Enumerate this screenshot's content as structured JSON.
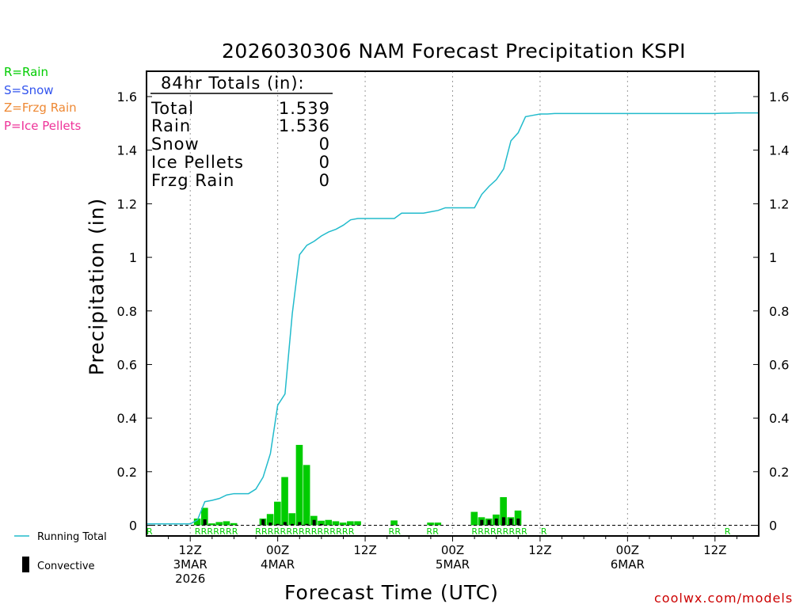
{
  "chart_data": {
    "type": "bar",
    "title": "2026030306 NAM Forecast Precipitation KSPI",
    "ylabel": "Precipitation (in)",
    "xlabel": "Forecast Time (UTC)",
    "ylim": [
      0,
      1.7
    ],
    "yticks": [
      "0",
      "0.2",
      "0.4",
      "0.6",
      "0.8",
      "1",
      "1.2",
      "1.4",
      "1.6"
    ],
    "ytick_values": [
      0,
      0.2,
      0.4,
      0.6,
      0.8,
      1,
      1.2,
      1.4,
      1.6
    ],
    "xlim_hours": [
      0,
      84
    ],
    "xticks": [
      {
        "hour": 6,
        "lines": [
          "12Z",
          "3MAR",
          "2026"
        ]
      },
      {
        "hour": 18,
        "lines": [
          "00Z",
          "4MAR"
        ]
      },
      {
        "hour": 30,
        "lines": [
          "12Z"
        ]
      },
      {
        "hour": 42,
        "lines": [
          "00Z",
          "5MAR"
        ]
      },
      {
        "hour": 54,
        "lines": [
          "12Z"
        ]
      },
      {
        "hour": 66,
        "lines": [
          "00Z",
          "6MAR"
        ]
      },
      {
        "hour": 78,
        "lines": [
          "12Z"
        ]
      }
    ],
    "running_total": {
      "name": "Running Total",
      "color": "#22bbcc",
      "hours": [
        0,
        1,
        2,
        3,
        4,
        5,
        6,
        7,
        8,
        9,
        10,
        11,
        12,
        13,
        14,
        15,
        16,
        17,
        18,
        19,
        20,
        21,
        22,
        23,
        24,
        25,
        26,
        27,
        28,
        29,
        30,
        31,
        32,
        33,
        34,
        35,
        36,
        37,
        38,
        39,
        40,
        41,
        42,
        43,
        44,
        45,
        46,
        47,
        48,
        49,
        50,
        51,
        52,
        53,
        54,
        55,
        56,
        57,
        58,
        59,
        60,
        61,
        62,
        63,
        64,
        65,
        66,
        67,
        68,
        69,
        70,
        71,
        72,
        73,
        74,
        75,
        76,
        77,
        78,
        79,
        80,
        81,
        82,
        83,
        84
      ],
      "values": [
        0.005,
        0.005,
        0.005,
        0.005,
        0.005,
        0.005,
        0.005,
        0.02,
        0.088,
        0.093,
        0.1,
        0.113,
        0.118,
        0.118,
        0.118,
        0.135,
        0.18,
        0.268,
        0.448,
        0.49,
        0.79,
        1.01,
        1.045,
        1.06,
        1.08,
        1.095,
        1.105,
        1.12,
        1.14,
        1.145,
        1.145,
        1.145,
        1.145,
        1.145,
        1.145,
        1.165,
        1.165,
        1.165,
        1.165,
        1.17,
        1.175,
        1.185,
        1.185,
        1.185,
        1.185,
        1.185,
        1.235,
        1.265,
        1.29,
        1.33,
        1.435,
        1.465,
        1.525,
        1.53,
        1.535,
        1.535,
        1.537,
        1.537,
        1.537,
        1.537,
        1.537,
        1.537,
        1.537,
        1.537,
        1.537,
        1.537,
        1.537,
        1.537,
        1.537,
        1.537,
        1.537,
        1.537,
        1.537,
        1.537,
        1.537,
        1.537,
        1.537,
        1.537,
        1.537,
        1.538,
        1.538,
        1.539,
        1.539,
        1.539,
        1.539
      ]
    },
    "precip_bars": {
      "name": "Rain",
      "color": "#00cc00",
      "hours": [
        7,
        8,
        9,
        10,
        11,
        12,
        16,
        17,
        18,
        19,
        20,
        21,
        22,
        23,
        24,
        25,
        26,
        27,
        28,
        29,
        34,
        39,
        40,
        45,
        46,
        47,
        48,
        49,
        50,
        51
      ],
      "values": [
        0.025,
        0.065,
        0.007,
        0.012,
        0.015,
        0.008,
        0.025,
        0.042,
        0.088,
        0.18,
        0.045,
        0.3,
        0.225,
        0.035,
        0.017,
        0.02,
        0.015,
        0.01,
        0.015,
        0.015,
        0.018,
        0.01,
        0.01,
        0.05,
        0.03,
        0.025,
        0.04,
        0.105,
        0.03,
        0.055
      ]
    },
    "convective": {
      "name": "Convective",
      "color": "#000000",
      "hours": [
        8,
        16,
        17,
        18,
        19,
        20,
        21,
        22,
        23,
        24,
        46,
        47,
        48,
        49,
        50,
        51
      ],
      "values": [
        0.022,
        0.022,
        0.01,
        0.005,
        0.012,
        0.005,
        0.012,
        0.005,
        0.02,
        0.005,
        0.02,
        0.02,
        0.025,
        0.03,
        0.025,
        0.025
      ]
    },
    "ptype_markers": [
      {
        "hour": 0,
        "type": "R"
      },
      {
        "hour": 6.6,
        "text": "RRRRRRR"
      },
      {
        "hour": 14.9,
        "text": "RRRRRRRRRRRRRRRR"
      },
      {
        "hour": 33.2,
        "text": "RR"
      },
      {
        "hour": 38.4,
        "text": "RR"
      },
      {
        "hour": 44.6,
        "text": "RRRRRRRRR"
      },
      {
        "hour": 54.1,
        "text": "R"
      },
      {
        "hour": 79.3,
        "text": "R"
      }
    ]
  },
  "legend": [
    {
      "text": "R=Rain",
      "color": "#00cc00"
    },
    {
      "text": "S=Snow",
      "color": "#3355ee"
    },
    {
      "text": "Z=Frzg Rain",
      "color": "#ee8833"
    },
    {
      "text": "P=Ice Pellets",
      "color": "#ee3399"
    }
  ],
  "totals": {
    "header": "84hr Totals (in):",
    "rows": [
      {
        "label": "Total",
        "value": "1.539"
      },
      {
        "label": "Rain",
        "value": "1.536"
      },
      {
        "label": "Snow",
        "value": "0"
      },
      {
        "label": "Ice Pellets",
        "value": "0"
      },
      {
        "label": "Frzg Rain",
        "value": "0"
      }
    ]
  },
  "bottom_legend": {
    "running_total": "Running Total",
    "convective": "Convective"
  },
  "credit": "coolwx.com/models"
}
